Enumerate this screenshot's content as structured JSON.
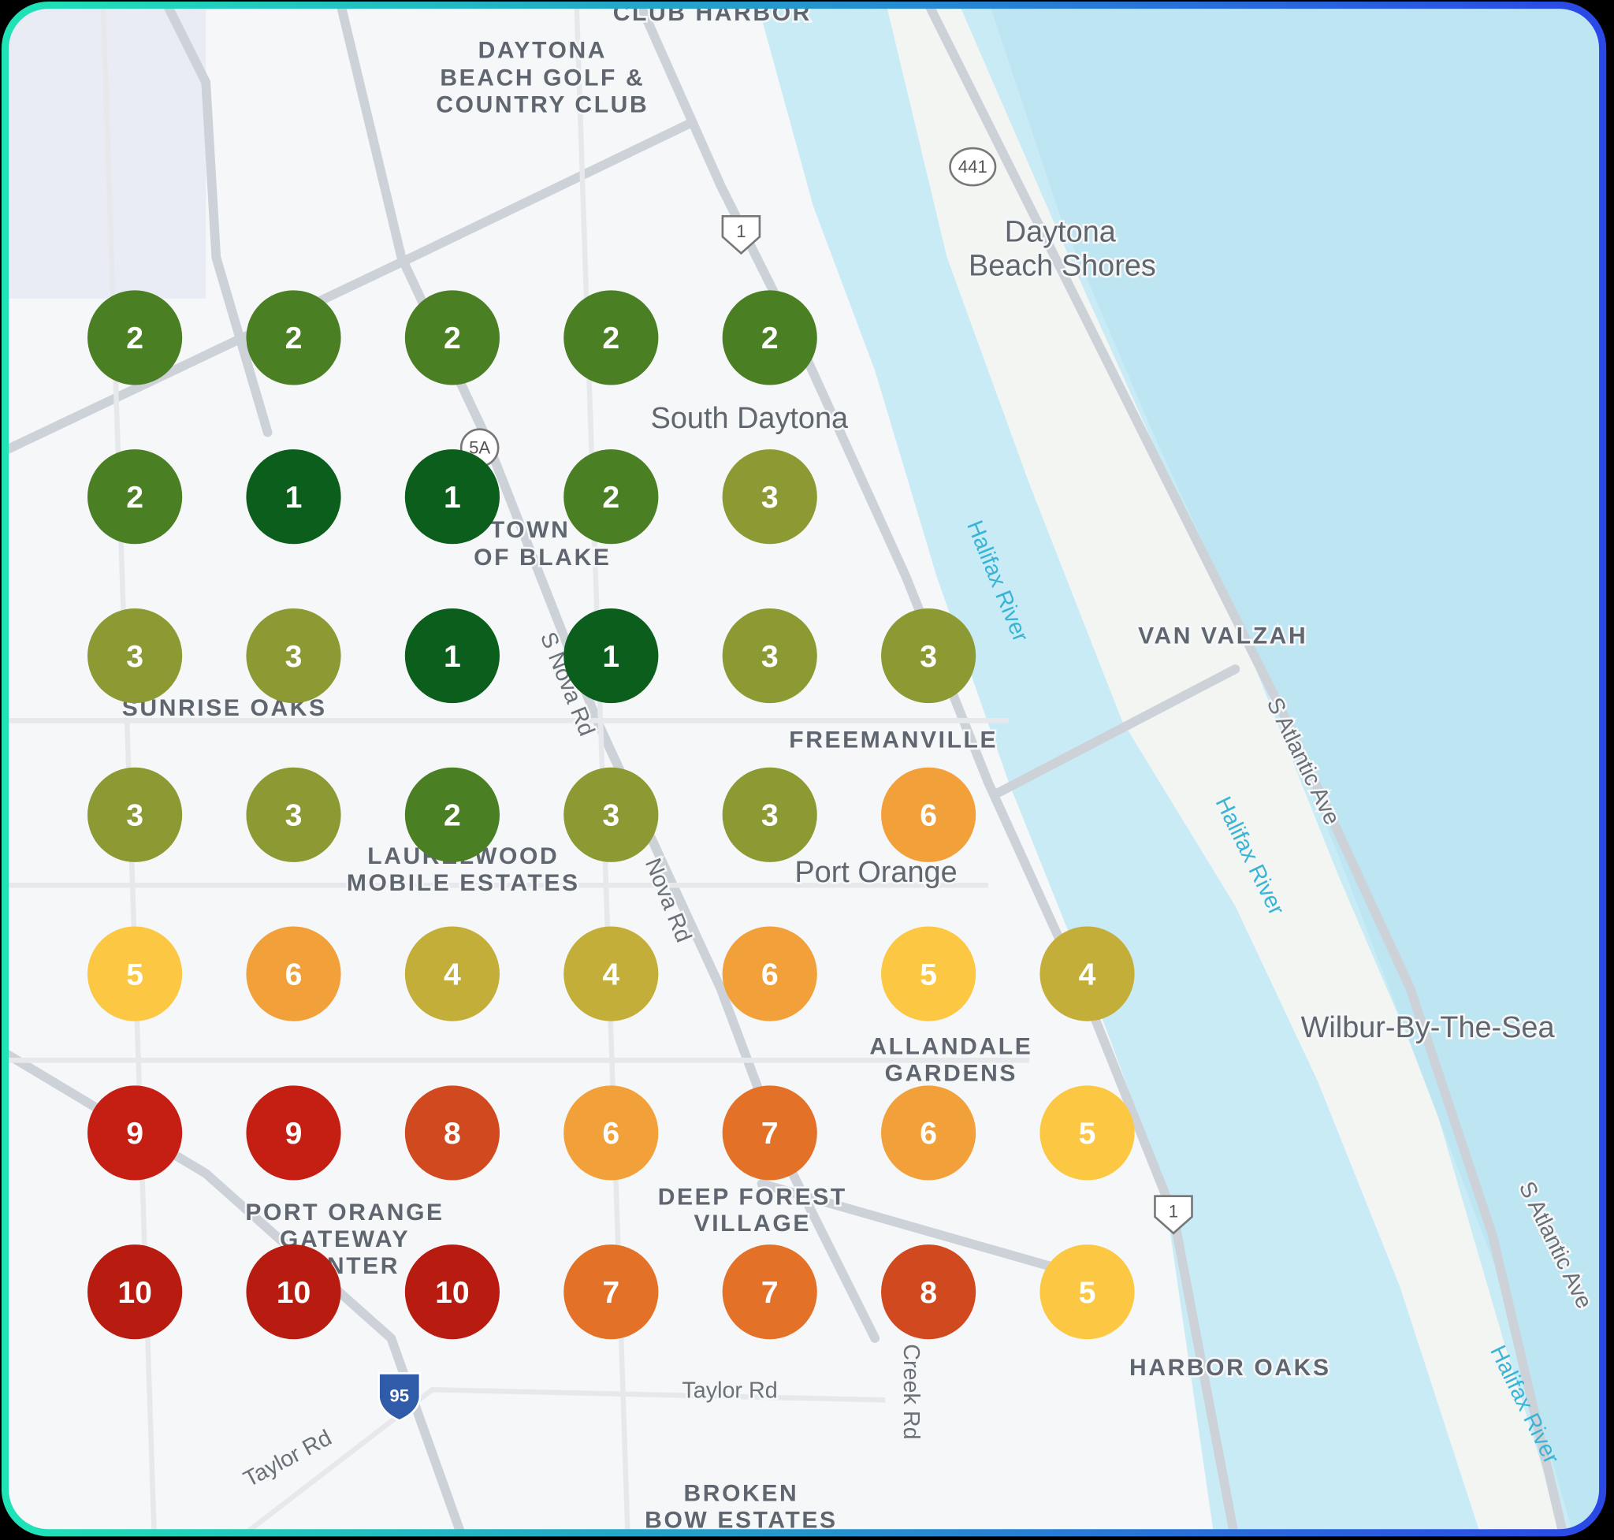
{
  "labels": [
    "CLUB HARBOR",
    "DAYTONA",
    "BEACH GOLF &",
    "COUNTRY CLUB",
    "441",
    "1",
    "Daytona",
    "Beach Shores",
    "South Daytona",
    "5A",
    "TOWN",
    "OF BLAKE",
    "Halifax River",
    "VAN VALZAH",
    "SUNRISE OAKS",
    "S Nova Rd",
    "FREEMANVILLE",
    "S Atlantic Ave",
    "LAURELWOOD",
    "MOBILE ESTATES",
    "Port Orange",
    "Nova Rd",
    "Halifax River",
    "Wilbur-By-The-Sea",
    "ALLANDALE",
    "GARDENS",
    "DEEP FOREST",
    "VILLAGE",
    "PORT ORANGE",
    "GATEWAY",
    "CENTER",
    "1",
    "HARBOR OAKS",
    "Taylor Rd",
    "Creek Rd",
    "Taylor Rd",
    "95",
    "BROKEN",
    "BOW ESTATES",
    "S Atlantic Ave",
    "Halifax River"
  ],
  "grid": {
    "rows": [
      [
        2,
        2,
        2,
        2,
        2,
        null,
        null
      ],
      [
        2,
        1,
        1,
        2,
        3,
        null,
        null
      ],
      [
        3,
        3,
        1,
        1,
        3,
        3,
        null
      ],
      [
        3,
        3,
        2,
        3,
        3,
        6,
        null
      ],
      [
        5,
        6,
        4,
        4,
        6,
        5,
        4
      ],
      [
        9,
        9,
        8,
        6,
        7,
        6,
        5
      ],
      [
        10,
        10,
        10,
        7,
        7,
        8,
        5
      ]
    ]
  },
  "marker_colors": {
    "1": "#0b5e1b",
    "2": "#4b7f24",
    "3": "#8d9a33",
    "4": "#c3ae3a",
    "5": "#fcc843",
    "6": "#f2a03a",
    "7": "#e47128",
    "8": "#d1491e",
    "9": "#c41f12",
    "10": "#b81b10"
  }
}
